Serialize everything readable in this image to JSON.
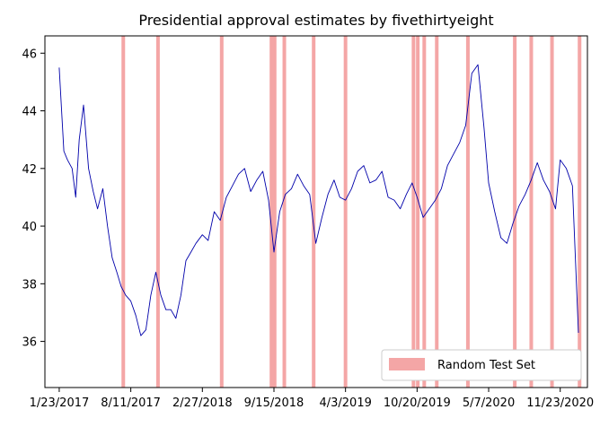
{
  "chart_data": {
    "type": "line",
    "title": "Presidential approval estimates by fivethirtyeight",
    "xlabel": "",
    "ylabel": "",
    "x_tick_labels": [
      "1/23/2017",
      "8/11/2017",
      "2/27/2018",
      "9/15/2018",
      "4/3/2019",
      "10/20/2019",
      "5/7/2020",
      "11/23/2020"
    ],
    "y_tick_labels": [
      "36",
      "38",
      "40",
      "42",
      "44",
      "46"
    ],
    "ylim": [
      34.4,
      46.6
    ],
    "grid": false,
    "legend_position": "lower-right",
    "line_color": "#0000aa",
    "band_color": "#f4a6a6",
    "series": [
      {
        "name": "",
        "x": [
          "2017-01-23",
          "2017-02-05",
          "2017-02-15",
          "2017-02-28",
          "2017-03-10",
          "2017-03-20",
          "2017-04-01",
          "2017-04-15",
          "2017-04-28",
          "2017-05-10",
          "2017-05-25",
          "2017-06-07",
          "2017-06-20",
          "2017-07-03",
          "2017-07-15",
          "2017-07-28",
          "2017-08-11",
          "2017-08-25",
          "2017-09-08",
          "2017-09-22",
          "2017-10-06",
          "2017-10-20",
          "2017-11-03",
          "2017-11-17",
          "2017-12-01",
          "2017-12-15",
          "2017-12-29",
          "2018-01-12",
          "2018-01-26",
          "2018-02-09",
          "2018-02-27",
          "2018-03-15",
          "2018-04-01",
          "2018-04-18",
          "2018-05-05",
          "2018-05-22",
          "2018-06-08",
          "2018-06-25",
          "2018-07-12",
          "2018-07-29",
          "2018-08-15",
          "2018-08-31",
          "2018-09-15",
          "2018-10-01",
          "2018-10-17",
          "2018-11-03",
          "2018-11-20",
          "2018-12-07",
          "2018-12-24",
          "2019-01-10",
          "2019-01-27",
          "2019-02-13",
          "2019-03-02",
          "2019-03-18",
          "2019-04-03",
          "2019-04-20",
          "2019-05-07",
          "2019-05-24",
          "2019-06-10",
          "2019-06-27",
          "2019-07-14",
          "2019-07-31",
          "2019-08-17",
          "2019-09-03",
          "2019-09-20",
          "2019-10-06",
          "2019-10-20",
          "2019-11-06",
          "2019-11-23",
          "2019-12-10",
          "2019-12-27",
          "2020-01-13",
          "2020-01-30",
          "2020-02-16",
          "2020-03-04",
          "2020-03-21",
          "2020-04-07",
          "2020-04-24",
          "2020-05-07",
          "2020-05-24",
          "2020-06-10",
          "2020-06-27",
          "2020-07-14",
          "2020-07-31",
          "2020-08-17",
          "2020-09-03",
          "2020-09-20",
          "2020-10-07",
          "2020-10-24",
          "2020-11-10",
          "2020-11-23",
          "2020-12-10",
          "2020-12-27",
          "2021-01-13"
        ],
        "y": [
          45.5,
          42.6,
          42.3,
          42.0,
          41.0,
          43.0,
          44.2,
          42.0,
          41.2,
          40.6,
          41.3,
          40.0,
          38.9,
          38.4,
          37.9,
          37.6,
          37.4,
          36.9,
          36.2,
          36.4,
          37.6,
          38.4,
          37.6,
          37.1,
          37.1,
          36.8,
          37.6,
          38.8,
          39.1,
          39.4,
          39.7,
          39.5,
          40.5,
          40.2,
          41.0,
          41.4,
          41.8,
          42.0,
          41.2,
          41.6,
          41.9,
          40.9,
          39.1,
          40.5,
          41.1,
          41.3,
          41.8,
          41.4,
          41.1,
          39.4,
          40.3,
          41.1,
          41.6,
          41.0,
          40.9,
          41.3,
          41.9,
          42.1,
          41.5,
          41.6,
          41.9,
          41.0,
          40.9,
          40.6,
          41.1,
          41.5,
          41.0,
          40.3,
          40.6,
          40.9,
          41.3,
          42.1,
          42.5,
          42.9,
          43.5,
          45.3,
          45.6,
          43.4,
          41.5,
          40.5,
          39.6,
          39.4,
          40.1,
          40.7,
          41.1,
          41.6,
          42.2,
          41.6,
          41.2,
          40.6,
          42.3,
          42.0,
          41.4,
          36.3
        ]
      }
    ],
    "shaded_spans": {
      "label": "Random Test Set",
      "dates": [
        "2017-07-21",
        "2017-10-26",
        "2018-04-22",
        "2018-09-08",
        "2018-09-17",
        "2018-10-14",
        "2019-01-04",
        "2019-04-03",
        "2019-10-10",
        "2019-10-22",
        "2019-11-09",
        "2019-12-14",
        "2020-03-10",
        "2020-07-19",
        "2020-09-03",
        "2020-10-31",
        "2021-01-16"
      ]
    }
  }
}
